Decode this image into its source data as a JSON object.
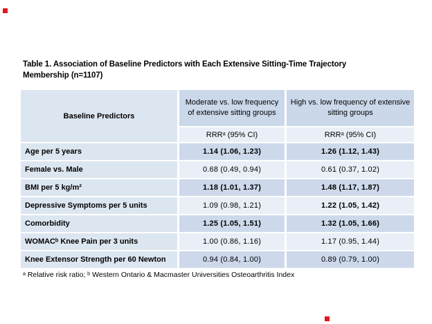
{
  "title": {
    "line1": "Table 1. Association of Baseline Predictors with Each Extensive Sitting-Time Trajectory",
    "line2": "Membership (n=1107)"
  },
  "table": {
    "columns": {
      "predictors": "Baseline Predictors",
      "moderate_group": "Moderate vs. low frequency of extensive sitting groups",
      "high_group": "High vs. low frequency of extensive sitting groups",
      "moderate_stat": "RRRᵃ (95% CI)",
      "high_stat": "RRRᵃ (95% CI)"
    },
    "rows": [
      {
        "label": "Age per 5 years",
        "moderate": "1.14 (1.06, 1.23)",
        "moderate_bold": true,
        "high": "1.26 (1.12, 1.43)",
        "high_bold": true
      },
      {
        "label": "Female vs. Male",
        "moderate": "0.68 (0.49, 0.94)",
        "moderate_bold": false,
        "high": "0.61 (0.37, 1.02)",
        "high_bold": false
      },
      {
        "label": "BMI per 5 kg/m²",
        "moderate": "1.18 (1.01, 1.37)",
        "moderate_bold": true,
        "high": "1.48 (1.17, 1.87)",
        "high_bold": true
      },
      {
        "label": "Depressive Symptoms per 5 units",
        "moderate": "1.09 (0.98, 1.21)",
        "moderate_bold": false,
        "high": "1.22 (1.05, 1.42)",
        "high_bold": true
      },
      {
        "label": "Comorbidity",
        "moderate": "1.25 (1.05, 1.51)",
        "moderate_bold": true,
        "high": "1.32 (1.05, 1.66)",
        "high_bold": true
      },
      {
        "label": "WOMACᵇ Knee Pain per 3 units",
        "moderate": "1.00 (0.86, 1.16)",
        "moderate_bold": false,
        "high": "1.17 (0.95, 1.44)",
        "high_bold": false
      },
      {
        "label": "Knee Extensor Strength per 60 Newton",
        "moderate": "0.94 (0.84, 1.00)",
        "moderate_bold": false,
        "high": "0.89 (0.79, 1.00)",
        "high_bold": false
      }
    ],
    "footnote": "ᵃ Relative risk ratio; ᵇ Western Ontario & Macmaster Universities Osteoarthritis Index"
  },
  "colors": {
    "page_bg": "#ffffff",
    "label_column_bg": "#dce6f1",
    "group_header_bg": "#cbd8ea",
    "stat_header_bg": "#eaeef7",
    "band_dark_bg": "#cdd9eb",
    "band_light_bg": "#eaeef7",
    "text": "#000000",
    "marker_red": "#e0181f"
  }
}
